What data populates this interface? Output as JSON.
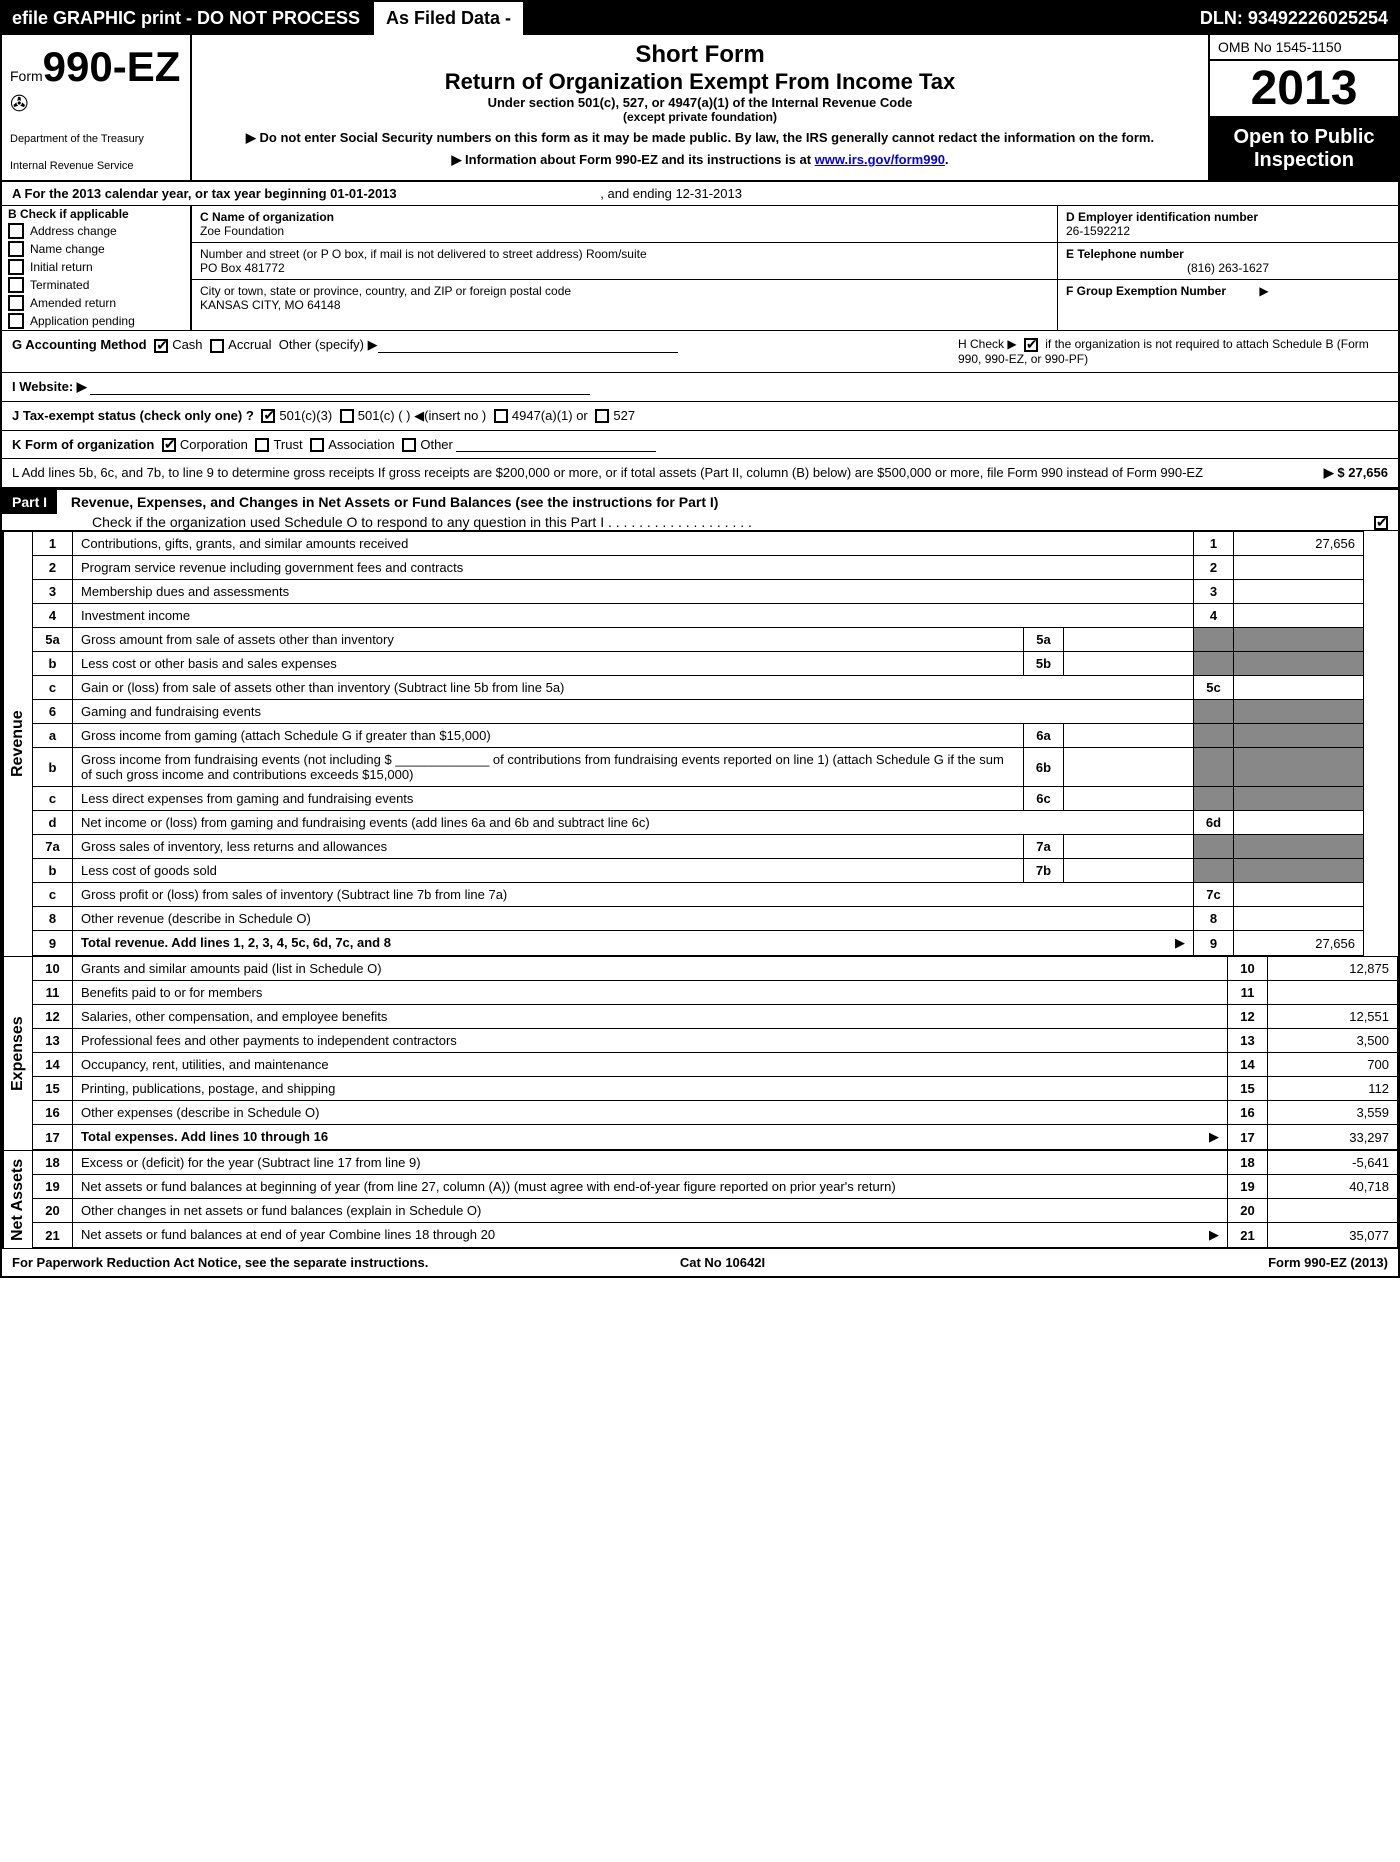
{
  "topbar": {
    "efile": "efile GRAPHIC print - DO NOT PROCESS",
    "asfiled": "As Filed Data -",
    "dln": "DLN: 93492226025254"
  },
  "header": {
    "form_prefix": "Form",
    "form_no": "990-EZ",
    "dept1": "Department of the Treasury",
    "dept2": "Internal Revenue Service",
    "short": "Short Form",
    "title": "Return of Organization Exempt From Income Tax",
    "under": "Under section 501(c), 527, or 4947(a)(1) of the Internal Revenue Code",
    "except": "(except private foundation)",
    "note1": "▶ Do not enter Social Security numbers on this form as it may be made public. By law, the IRS generally cannot redact the information on the form.",
    "note2_pre": "▶ Information about Form 990-EZ and its instructions is at ",
    "note2_link": "www.irs.gov/form990",
    "omb": "OMB No  1545-1150",
    "year": "2013",
    "open1": "Open to Public",
    "open2": "Inspection"
  },
  "rowA": {
    "label": "A  For the 2013 calendar year, or tax year beginning 01-01-2013",
    "ending": ", and ending 12-31-2013"
  },
  "colB": {
    "head": "B  Check if applicable",
    "items": [
      "Address change",
      "Name change",
      "Initial return",
      "Terminated",
      "Amended return",
      "Application pending"
    ]
  },
  "colC": {
    "name_lbl": "C Name of organization",
    "name": "Zoe Foundation",
    "street_lbl": "Number and street (or P  O  box, if mail is not delivered to street address) Room/suite",
    "street": "PO Box 481772",
    "city_lbl": "City or town, state or province, country, and ZIP or foreign postal code",
    "city": "KANSAS CITY, MO  64148"
  },
  "colD": {
    "ein_lbl": "D Employer identification number",
    "ein": "26-1592212",
    "tel_lbl": "E Telephone number",
    "tel": "(816) 263-1627",
    "grp_lbl": "F Group Exemption Number",
    "grp": "▶"
  },
  "rowH": {
    "pre": "H  Check ▶",
    "post": "if the organization is not required to attach Schedule B (Form 990, 990-EZ, or 990-PF)"
  },
  "rowG": {
    "label": "G Accounting Method",
    "cash": "Cash",
    "accrual": "Accrual",
    "other": "Other (specify) ▶"
  },
  "rowI": {
    "label": "I Website: ▶"
  },
  "rowJ": {
    "label": "J Tax-exempt status (check only one) ?",
    "a": "501(c)(3)",
    "b": "501(c) (   ) ◀(insert no )",
    "c": "4947(a)(1) or",
    "d": "527"
  },
  "rowK": {
    "label": "K Form of organization",
    "a": "Corporation",
    "b": "Trust",
    "c": "Association",
    "d": "Other"
  },
  "rowL": {
    "text": "L Add lines 5b, 6c, and 7b, to line 9 to determine gross receipts  If gross receipts are $200,000 or more, or if total assets (Part II, column (B) below) are $500,000 or more, file Form 990 instead of Form 990-EZ",
    "amt": "▶ $ 27,656"
  },
  "part1": {
    "hdr": "Part I",
    "title": "Revenue, Expenses, and Changes in Net Assets or Fund Balances (see the instructions for Part I)",
    "sub": "Check if the organization used Schedule O to respond to any question in this Part I  .  .  .  .  .  .  .  .  .  .  .  .  .  .  .  .  .  .  ."
  },
  "sides": {
    "rev": "Revenue",
    "exp": "Expenses",
    "net": "Net Assets"
  },
  "lines": [
    {
      "n": "1",
      "t": "Contributions, gifts, grants, and similar amounts received",
      "r": "1",
      "a": "27,656"
    },
    {
      "n": "2",
      "t": "Program service revenue including government fees and contracts",
      "r": "2",
      "a": ""
    },
    {
      "n": "3",
      "t": "Membership dues and assessments",
      "r": "3",
      "a": ""
    },
    {
      "n": "4",
      "t": "Investment income",
      "r": "4",
      "a": ""
    },
    {
      "n": "5a",
      "t": "Gross amount from sale of assets other than inventory",
      "m": "5a"
    },
    {
      "n": "b",
      "t": "Less  cost or other basis and sales expenses",
      "m": "5b"
    },
    {
      "n": "c",
      "t": "Gain or (loss) from sale of assets other than inventory (Subtract line 5b from line 5a)",
      "r": "5c",
      "a": ""
    },
    {
      "n": "6",
      "t": "Gaming and fundraising events"
    },
    {
      "n": "a",
      "t": "Gross income from gaming (attach Schedule G if greater than $15,000)",
      "m": "6a"
    },
    {
      "n": "b",
      "t": "Gross income from fundraising events (not including $ _____________ of contributions from fundraising events reported on line 1) (attach Schedule G if the sum of such gross income and contributions exceeds $15,000)",
      "m": "6b"
    },
    {
      "n": "c",
      "t": "Less  direct expenses from gaming and fundraising events",
      "m": "6c"
    },
    {
      "n": "d",
      "t": "Net income or (loss) from gaming and fundraising events (add lines 6a and 6b and subtract line 6c)",
      "r": "6d",
      "a": ""
    },
    {
      "n": "7a",
      "t": "Gross sales of inventory, less returns and allowances",
      "m": "7a"
    },
    {
      "n": "b",
      "t": "Less  cost of goods sold",
      "m": "7b"
    },
    {
      "n": "c",
      "t": "Gross profit or (loss) from sales of inventory (Subtract line 7b from line 7a)",
      "r": "7c",
      "a": ""
    },
    {
      "n": "8",
      "t": "Other revenue (describe in Schedule O)",
      "r": "8",
      "a": ""
    },
    {
      "n": "9",
      "t": "Total revenue. Add lines 1, 2, 3, 4, 5c, 6d, 7c, and 8",
      "r": "9",
      "a": "27,656",
      "arrow": "▶",
      "bold": true
    },
    {
      "n": "10",
      "t": "Grants and similar amounts paid (list in Schedule O)",
      "r": "10",
      "a": "12,875"
    },
    {
      "n": "11",
      "t": "Benefits paid to or for members",
      "r": "11",
      "a": ""
    },
    {
      "n": "12",
      "t": "Salaries, other compensation, and employee benefits",
      "r": "12",
      "a": "12,551"
    },
    {
      "n": "13",
      "t": "Professional fees and other payments to independent contractors",
      "r": "13",
      "a": "3,500"
    },
    {
      "n": "14",
      "t": "Occupancy, rent, utilities, and maintenance",
      "r": "14",
      "a": "700"
    },
    {
      "n": "15",
      "t": "Printing, publications, postage, and shipping",
      "r": "15",
      "a": "112"
    },
    {
      "n": "16",
      "t": "Other expenses (describe in Schedule O)",
      "r": "16",
      "a": "3,559"
    },
    {
      "n": "17",
      "t": "Total expenses. Add lines 10 through 16",
      "r": "17",
      "a": "33,297",
      "arrow": "▶",
      "bold": true
    },
    {
      "n": "18",
      "t": "Excess or (deficit) for the year (Subtract line 17 from line 9)",
      "r": "18",
      "a": "-5,641"
    },
    {
      "n": "19",
      "t": "Net assets or fund balances at beginning of year (from line 27, column (A)) (must agree with end-of-year figure reported on prior year's return)",
      "r": "19",
      "a": "40,718"
    },
    {
      "n": "20",
      "t": "Other changes in net assets or fund balances (explain in Schedule O)",
      "r": "20",
      "a": ""
    },
    {
      "n": "21",
      "t": "Net assets or fund balances at end of year  Combine lines 18 through 20",
      "r": "21",
      "a": "35,077",
      "arrow": "▶"
    }
  ],
  "footer": {
    "l": "For Paperwork Reduction Act Notice, see the separate instructions.",
    "m": "Cat  No  10642I",
    "r": "Form 990-EZ (2013)"
  }
}
